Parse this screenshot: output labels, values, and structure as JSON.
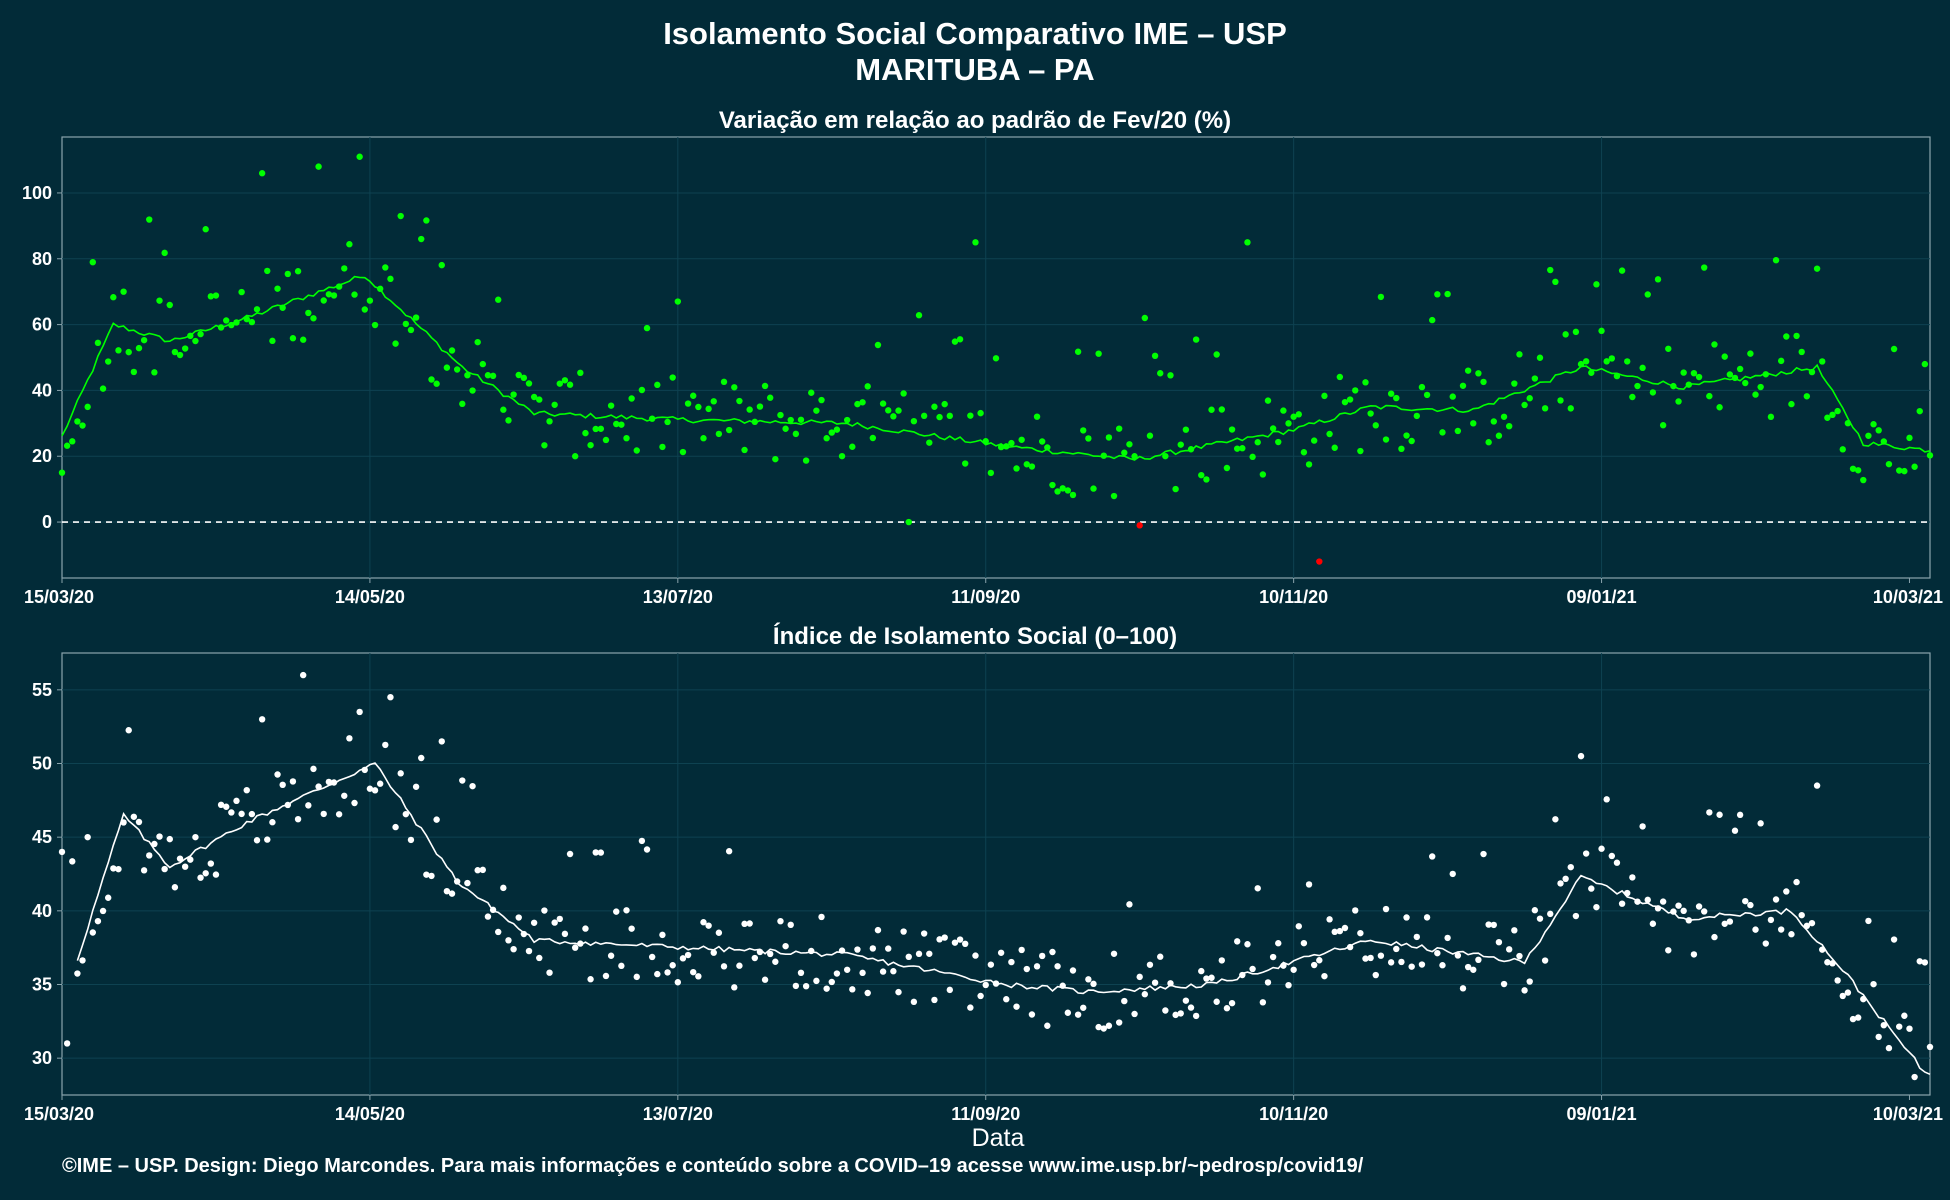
{
  "title_line1": "Isolamento Social Comparativo IME – USP",
  "title_line2": "MARITUBA – PA",
  "xlabel": "Data",
  "footer": "©IME – USP. Design: Diego Marcondes. Para mais informações e conteúdo sobre a COVID–19 acesse www.ime.usp.br/~pedrosp/covid19/",
  "colors": {
    "background": "#022b38",
    "panel_border": "#8aa4ad",
    "grid": "#0e4251",
    "positive": "#00ff00",
    "negative": "#ff0000",
    "index": "#ffffff"
  },
  "chart_data": [
    {
      "type": "scatter",
      "title": "Variação em relação ao padrão de Fev/20 (%)",
      "x_start_date": "2020-03-15",
      "x_ticks": [
        "15/03/20",
        "14/05/20",
        "13/07/20",
        "11/09/20",
        "10/11/20",
        "09/01/21",
        "10/03/21"
      ],
      "y_ticks": [
        0,
        20,
        40,
        60,
        80,
        100
      ],
      "ylim": [
        -17,
        117
      ],
      "reference_line": 0,
      "series": [
        {
          "name": "daily",
          "kind": "points",
          "key_values": [
            {
              "date": "2020-03-15",
              "value": 15
            },
            {
              "date": "2020-03-20",
              "value": 35
            },
            {
              "date": "2020-03-27",
              "value": 70
            },
            {
              "date": "2020-04-10",
              "value": 55
            },
            {
              "date": "2020-04-23",
              "value": 106
            },
            {
              "date": "2020-05-04",
              "value": 108
            },
            {
              "date": "2020-05-12",
              "value": 111
            },
            {
              "date": "2020-05-24",
              "value": 86
            },
            {
              "date": "2020-06-05",
              "value": 48
            },
            {
              "date": "2020-06-15",
              "value": 38
            },
            {
              "date": "2020-07-15",
              "value": 36
            },
            {
              "date": "2020-08-15",
              "value": 31
            },
            {
              "date": "2020-08-27",
              "value": 0
            },
            {
              "date": "2020-09-09",
              "value": 85
            },
            {
              "date": "2020-10-10",
              "value": 20
            },
            {
              "date": "2020-10-11",
              "value": -1
            },
            {
              "date": "2020-10-12",
              "value": 62
            },
            {
              "date": "2020-11-01",
              "value": 85
            },
            {
              "date": "2020-11-15",
              "value": -12
            },
            {
              "date": "2020-12-15",
              "value": 30
            },
            {
              "date": "2020-12-31",
              "value": 73
            },
            {
              "date": "2021-01-15",
              "value": 38
            },
            {
              "date": "2021-02-20",
              "value": 77
            },
            {
              "date": "2021-03-13",
              "value": 48
            }
          ]
        },
        {
          "name": "moving average",
          "kind": "line",
          "key_values": [
            {
              "date": "2020-03-15",
              "value": 26
            },
            {
              "date": "2020-03-25",
              "value": 60
            },
            {
              "date": "2020-04-05",
              "value": 55
            },
            {
              "date": "2020-04-20",
              "value": 62
            },
            {
              "date": "2020-05-13",
              "value": 75
            },
            {
              "date": "2020-06-01",
              "value": 47
            },
            {
              "date": "2020-06-15",
              "value": 33
            },
            {
              "date": "2020-07-15",
              "value": 31
            },
            {
              "date": "2020-08-15",
              "value": 30
            },
            {
              "date": "2020-09-15",
              "value": 23
            },
            {
              "date": "2020-10-10",
              "value": 19
            },
            {
              "date": "2020-11-10",
              "value": 28
            },
            {
              "date": "2020-11-25",
              "value": 35
            },
            {
              "date": "2020-12-15",
              "value": 34
            },
            {
              "date": "2021-01-05",
              "value": 47
            },
            {
              "date": "2021-01-25",
              "value": 41
            },
            {
              "date": "2021-02-20",
              "value": 47
            },
            {
              "date": "2021-03-01",
              "value": 24
            },
            {
              "date": "2021-03-13",
              "value": 22
            }
          ]
        }
      ]
    },
    {
      "type": "scatter",
      "title": "Índice de Isolamento Social (0–100)",
      "x_start_date": "2020-03-15",
      "x_ticks": [
        "15/03/20",
        "14/05/20",
        "13/07/20",
        "11/09/20",
        "10/11/20",
        "09/01/21",
        "10/03/21"
      ],
      "y_ticks": [
        30,
        35,
        40,
        45,
        50,
        55
      ],
      "ylim": [
        27.5,
        57.5
      ],
      "series": [
        {
          "name": "daily",
          "kind": "points",
          "key_values": [
            {
              "date": "2020-03-15",
              "value": 44
            },
            {
              "date": "2020-03-16",
              "value": 31
            },
            {
              "date": "2020-03-20",
              "value": 45
            },
            {
              "date": "2020-03-27",
              "value": 46
            },
            {
              "date": "2020-04-10",
              "value": 45
            },
            {
              "date": "2020-04-23",
              "value": 53
            },
            {
              "date": "2020-05-01",
              "value": 56
            },
            {
              "date": "2020-05-12",
              "value": 53.5
            },
            {
              "date": "2020-05-18",
              "value": 54.5
            },
            {
              "date": "2020-05-28",
              "value": 51.5
            },
            {
              "date": "2020-06-10",
              "value": 38
            },
            {
              "date": "2020-07-15",
              "value": 37
            },
            {
              "date": "2020-08-15",
              "value": 36
            },
            {
              "date": "2020-09-15",
              "value": 34
            },
            {
              "date": "2020-10-10",
              "value": 33
            },
            {
              "date": "2020-11-10",
              "value": 36
            },
            {
              "date": "2020-12-15",
              "value": 36
            },
            {
              "date": "2021-01-05",
              "value": 50.5
            },
            {
              "date": "2021-01-25",
              "value": 40
            },
            {
              "date": "2021-02-20",
              "value": 48.5
            },
            {
              "date": "2021-03-10",
              "value": 32
            },
            {
              "date": "2021-03-13",
              "value": 36.5
            }
          ]
        },
        {
          "name": "moving average",
          "kind": "line",
          "key_values": [
            {
              "date": "2020-03-18",
              "value": 36.7
            },
            {
              "date": "2020-03-27",
              "value": 46.5
            },
            {
              "date": "2020-04-05",
              "value": 43
            },
            {
              "date": "2020-04-20",
              "value": 46
            },
            {
              "date": "2020-05-15",
              "value": 50
            },
            {
              "date": "2020-05-31",
              "value": 42
            },
            {
              "date": "2020-06-15",
              "value": 38
            },
            {
              "date": "2020-07-15",
              "value": 37.5
            },
            {
              "date": "2020-08-15",
              "value": 37
            },
            {
              "date": "2020-09-15",
              "value": 35
            },
            {
              "date": "2020-10-01",
              "value": 34.5
            },
            {
              "date": "2020-10-25",
              "value": 35
            },
            {
              "date": "2020-11-25",
              "value": 38
            },
            {
              "date": "2020-12-25",
              "value": 36.5
            },
            {
              "date": "2021-01-05",
              "value": 42.3
            },
            {
              "date": "2021-01-25",
              "value": 39.5
            },
            {
              "date": "2021-02-15",
              "value": 40
            },
            {
              "date": "2021-02-25",
              "value": 36
            },
            {
              "date": "2021-03-13",
              "value": 29
            }
          ]
        }
      ]
    }
  ]
}
